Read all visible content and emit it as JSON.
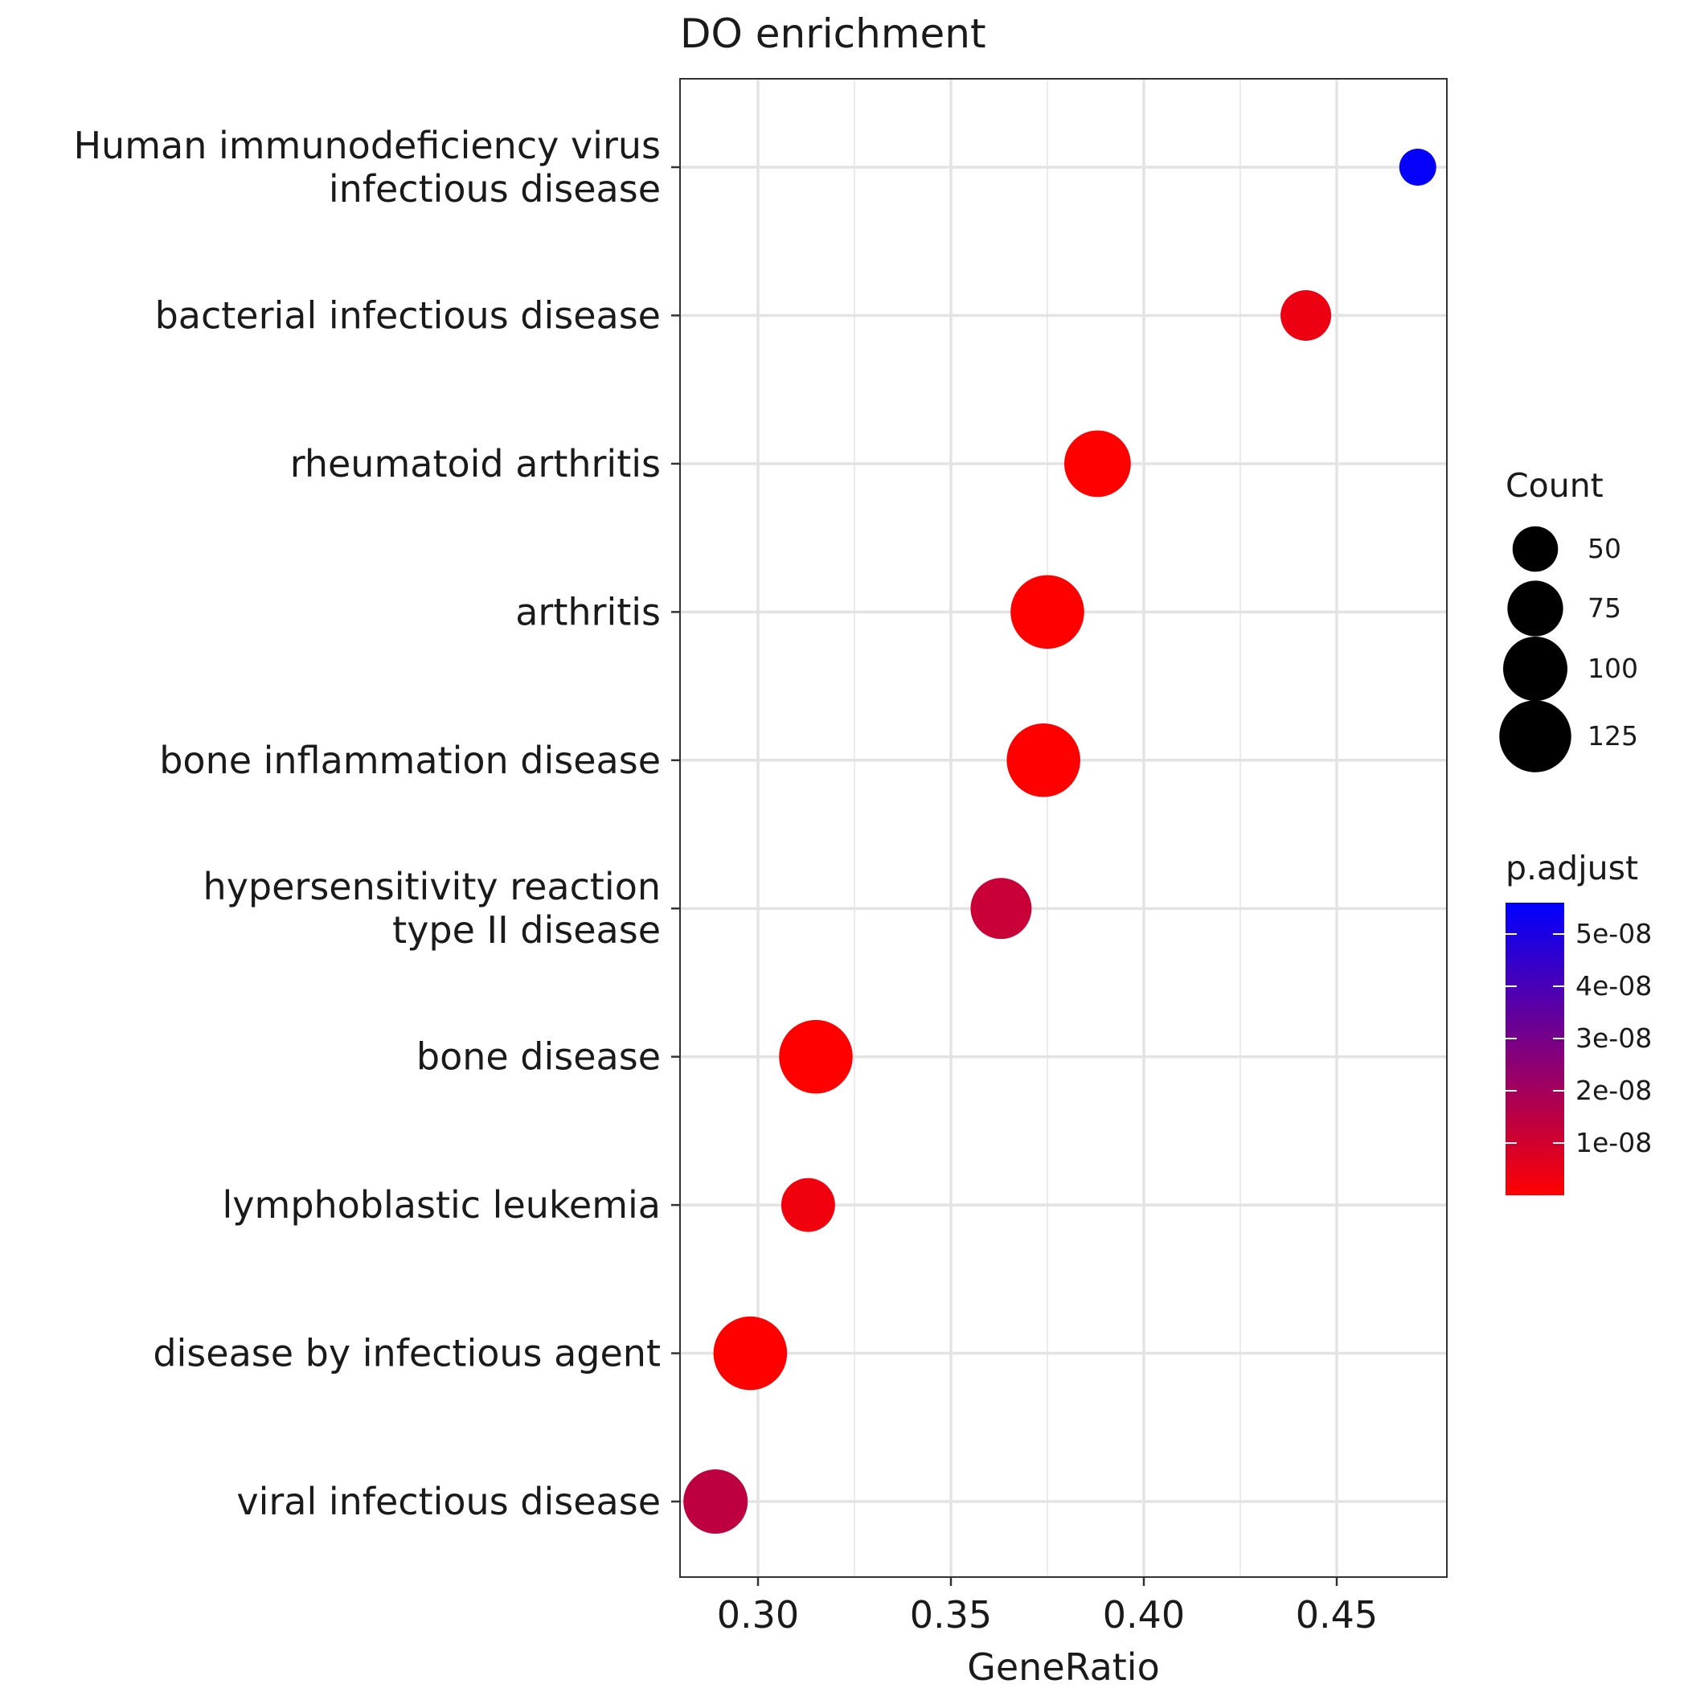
{
  "chart_data": {
    "type": "scatter",
    "title": "DO enrichment",
    "xlabel": "GeneRatio",
    "ylabel": "",
    "xlim": [
      0.28,
      0.48
    ],
    "x_ticks": [
      {
        "value": 0.3,
        "label": "0.30"
      },
      {
        "value": 0.35,
        "label": "0.35"
      },
      {
        "value": 0.4,
        "label": "0.40"
      },
      {
        "value": 0.45,
        "label": "0.45"
      }
    ],
    "grid": true,
    "categories": [
      "Human immunodeficiency virus\ninfectious disease",
      "bacterial infectious disease",
      "rheumatoid arthritis",
      "arthritis",
      "bone inflammation disease",
      "hypersensitivity reaction\ntype II disease",
      "bone disease",
      "lymphoblastic leukemia",
      "disease by infectious agent",
      "viral infectious disease"
    ],
    "points": [
      {
        "category": "Human immunodeficiency virus\ninfectious disease",
        "gene_ratio": 0.471,
        "count": 33,
        "p_adjust": 5.5e-08
      },
      {
        "category": "bacterial infectious disease",
        "gene_ratio": 0.442,
        "count": 62,
        "p_adjust": 4e-09
      },
      {
        "category": "rheumatoid arthritis",
        "gene_ratio": 0.388,
        "count": 107,
        "p_adjust": 1e-10
      },
      {
        "category": "arthritis",
        "gene_ratio": 0.375,
        "count": 131,
        "p_adjust": 1e-10
      },
      {
        "category": "bone inflammation disease",
        "gene_ratio": 0.374,
        "count": 131,
        "p_adjust": 1e-10
      },
      {
        "category": "hypersensitivity reaction\ntype II disease",
        "gene_ratio": 0.363,
        "count": 90,
        "p_adjust": 1.2e-08
      },
      {
        "category": "bone disease",
        "gene_ratio": 0.315,
        "count": 131,
        "p_adjust": 1e-10
      },
      {
        "category": "lymphoblastic leukemia",
        "gene_ratio": 0.313,
        "count": 70,
        "p_adjust": 3e-09
      },
      {
        "category": "disease by infectious agent",
        "gene_ratio": 0.298,
        "count": 131,
        "p_adjust": 1e-10
      },
      {
        "category": "viral infectious disease",
        "gene_ratio": 0.289,
        "count": 100,
        "p_adjust": 1.4e-08
      }
    ],
    "size_legend": {
      "title": "Count",
      "entries": [
        {
          "value": 50,
          "label": "50"
        },
        {
          "value": 75,
          "label": "75"
        },
        {
          "value": 100,
          "label": "100"
        },
        {
          "value": 125,
          "label": "125"
        }
      ]
    },
    "color_legend": {
      "title": "p.adjust",
      "min": 0,
      "max": 5.6e-08,
      "low_color": "#ff0000",
      "high_color": "#0000ff",
      "ticks": [
        {
          "value": 1e-08,
          "label": "1e-08"
        },
        {
          "value": 2e-08,
          "label": "2e-08"
        },
        {
          "value": 3e-08,
          "label": "3e-08"
        },
        {
          "value": 4e-08,
          "label": "4e-08"
        },
        {
          "value": 5e-08,
          "label": "5e-08"
        }
      ]
    },
    "legend_position": "right"
  }
}
